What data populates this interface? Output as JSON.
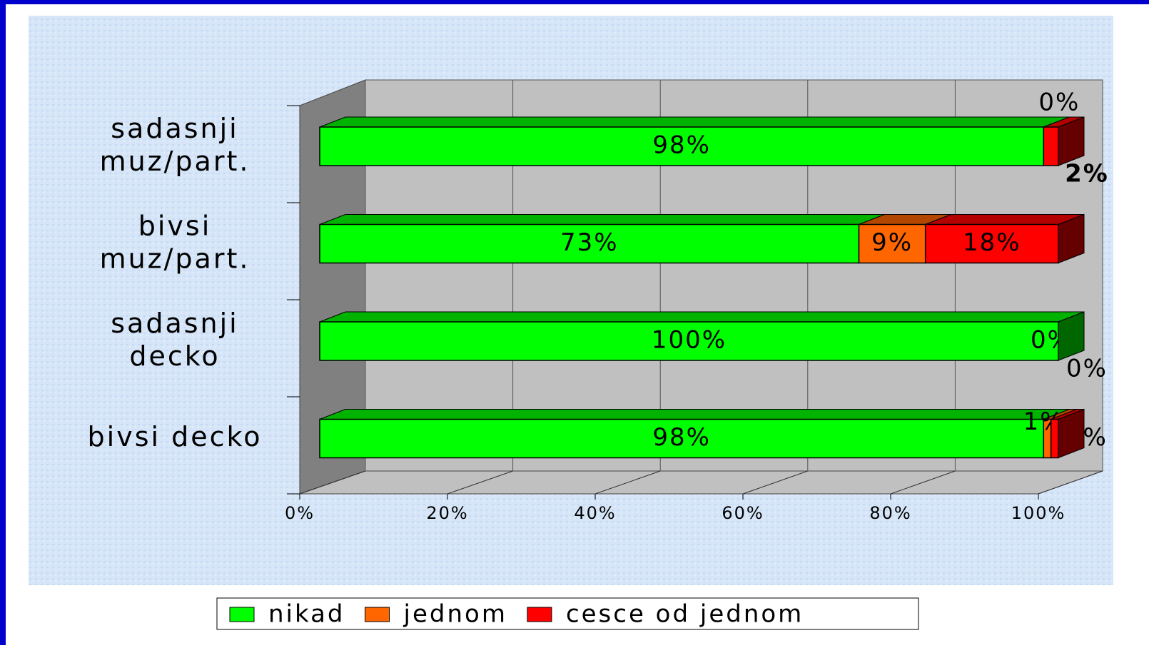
{
  "chart_data": {
    "type": "stacked-bar-3d",
    "categories": [
      "sadasnji muz/part.",
      "bivsi muz/part.",
      "sadasnji decko",
      "bivsi decko"
    ],
    "series": [
      {
        "name": "nikad",
        "color": "#00ff00",
        "values": [
          98,
          73,
          100,
          98
        ],
        "value_labels": [
          "98%",
          "73%",
          "100%",
          "98%"
        ]
      },
      {
        "name": "jednom",
        "color": "#ff6600",
        "values": [
          0,
          9,
          0,
          1
        ],
        "value_labels": [
          "0%",
          "9%",
          "0%",
          "1%"
        ]
      },
      {
        "name": "cesce od jednom",
        "color": "#ff0000",
        "values": [
          2,
          18,
          0,
          1
        ],
        "value_labels": [
          "2%",
          "18%",
          "0%",
          "1%"
        ]
      }
    ],
    "xlim": [
      0,
      100
    ],
    "xticks": [
      {
        "value": 0,
        "label": "0%"
      },
      {
        "value": 20,
        "label": "20%"
      },
      {
        "value": 40,
        "label": "40%"
      },
      {
        "value": 60,
        "label": "60%"
      },
      {
        "value": 80,
        "label": "80%"
      },
      {
        "value": 100,
        "label": "100%"
      }
    ],
    "grid": true,
    "legend": "bottom"
  }
}
